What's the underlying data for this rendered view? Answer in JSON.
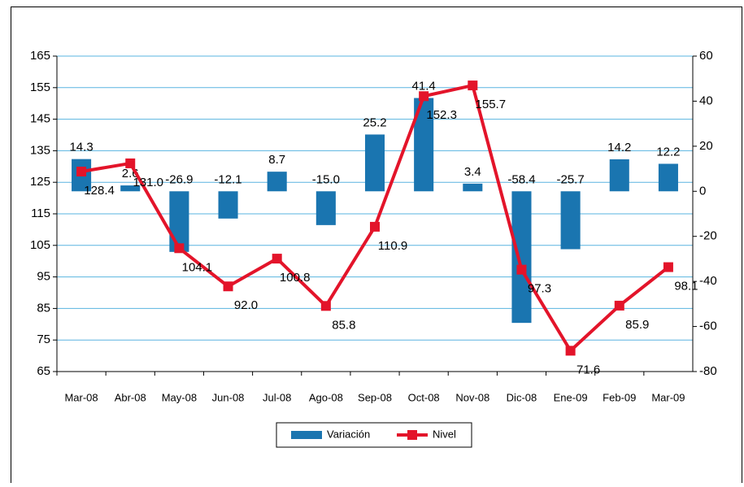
{
  "chart_data": {
    "type": "bar_line",
    "categories": [
      "Mar-08",
      "Abr-08",
      "May-08",
      "Jun-08",
      "Jul-08",
      "Ago-08",
      "Sep-08",
      "Oct-08",
      "Nov-08",
      "Dic-08",
      "Ene-09",
      "Feb-09",
      "Mar-09"
    ],
    "series": [
      {
        "name": "Variación",
        "type": "bar",
        "axis": "y2",
        "color": "#1a75b0",
        "values": [
          14.3,
          2.6,
          -26.9,
          -12.1,
          8.7,
          -15.0,
          25.2,
          41.4,
          3.4,
          -58.4,
          -25.7,
          14.2,
          12.2
        ],
        "value_labels": [
          "14.3",
          "2.6",
          "-26.9",
          "-12.1",
          "8.7",
          "-15.0",
          "25.2",
          "41.4",
          "3.4",
          "-58.4",
          "-25.7",
          "14.2",
          "12.2"
        ]
      },
      {
        "name": "Nivel",
        "type": "line",
        "axis": "y",
        "color": "#e3142a",
        "values": [
          128.4,
          131.0,
          104.1,
          92.0,
          100.8,
          85.8,
          110.9,
          152.3,
          155.7,
          97.3,
          71.6,
          85.9,
          98.1
        ],
        "value_labels": [
          "128.4",
          "131.0",
          "104.1",
          "92.0",
          "100.8",
          "85.8",
          "110.9",
          "152.3",
          "155.7",
          "97.3",
          "71.6",
          "85.9",
          "98.1"
        ]
      }
    ],
    "ylim": [
      65,
      165
    ],
    "yticks": [
      65,
      75,
      85,
      95,
      105,
      115,
      125,
      135,
      145,
      155,
      165
    ],
    "y2lim": [
      -80,
      60
    ],
    "y2ticks": [
      -80,
      -60,
      -40,
      -20,
      0,
      20,
      40,
      60
    ],
    "grid": true,
    "legend": "bottom"
  }
}
